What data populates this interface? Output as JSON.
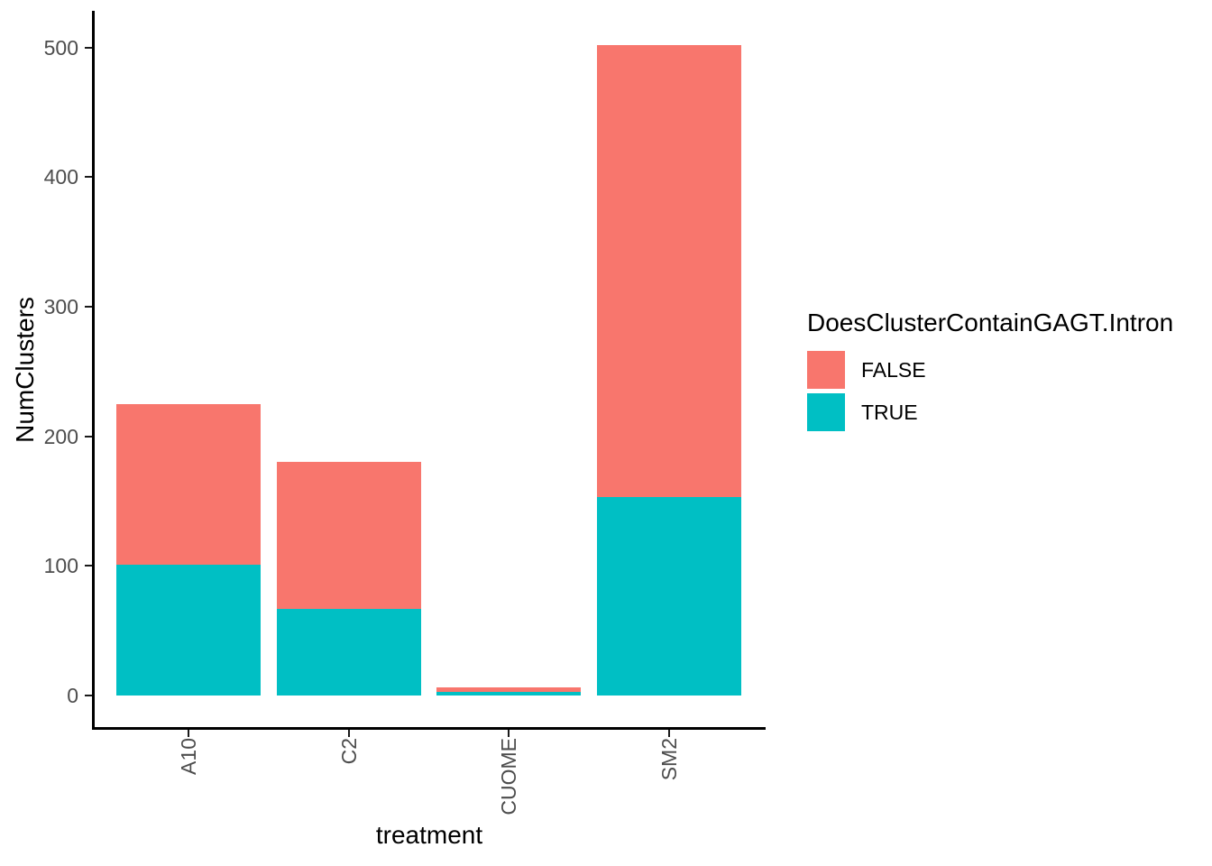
{
  "figure": {
    "background_color": "#FFFFFF",
    "axis_line_color": "#000000",
    "tick_label_color": "#4D4D4D"
  },
  "chart_data": {
    "type": "bar",
    "stacked": true,
    "title": "",
    "xlabel": "treatment",
    "ylabel": "NumClusters",
    "categories": [
      "A10",
      "C2",
      "CUOME",
      "SM2"
    ],
    "series": [
      {
        "name": "TRUE",
        "color": "#00BFC4",
        "values": [
          101,
          67,
          3,
          153
        ]
      },
      {
        "name": "FALSE",
        "color": "#F8766D",
        "values": [
          124,
          113,
          3,
          349
        ]
      }
    ],
    "stack_order_bottom_to_top": [
      "TRUE",
      "FALSE"
    ],
    "totals": [
      225,
      180,
      6,
      502
    ],
    "y_ticks": [
      0,
      100,
      200,
      300,
      400,
      500
    ],
    "ylim": [
      0,
      525
    ],
    "grid": false,
    "legend": {
      "title": "DoesClusterContainGAGT.Intron",
      "position": "right",
      "entries": [
        {
          "label": "FALSE",
          "color": "#F8766D"
        },
        {
          "label": "TRUE",
          "color": "#00BFC4"
        }
      ]
    }
  }
}
